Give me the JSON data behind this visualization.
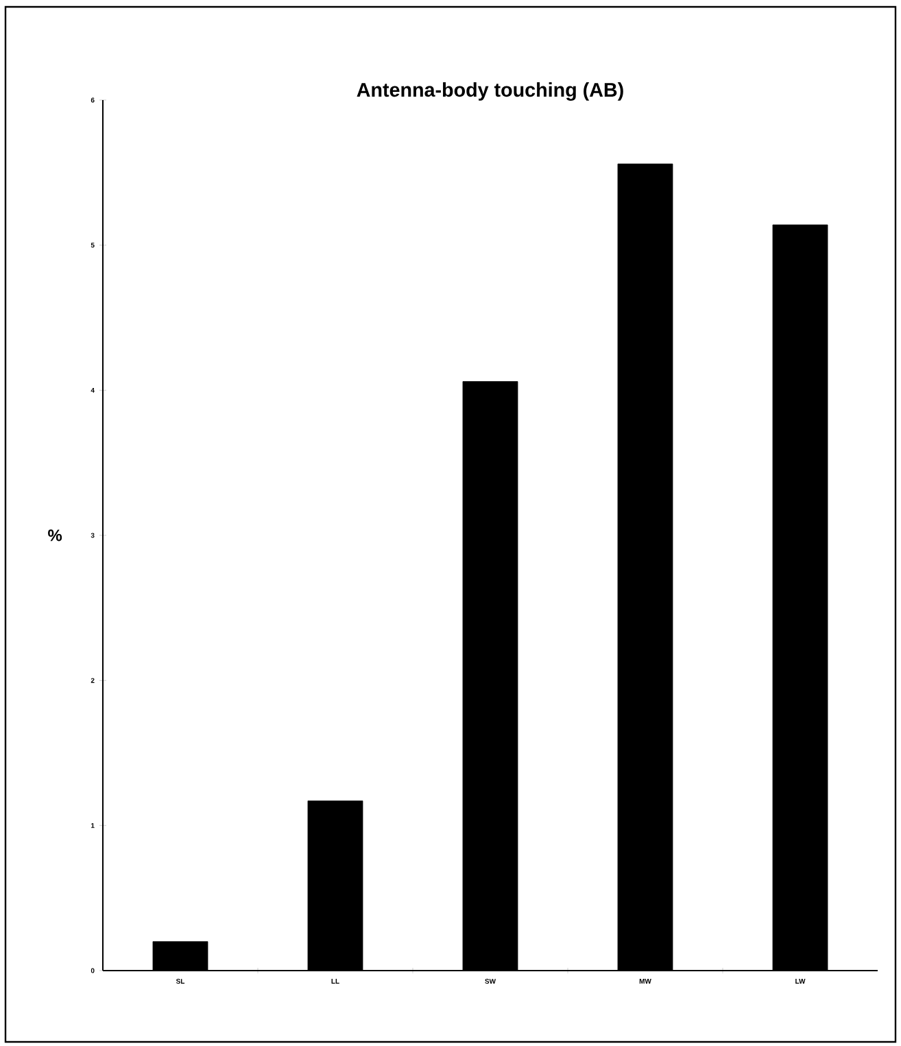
{
  "chart_data": {
    "type": "bar",
    "title": "Antenna-body touching (AB)",
    "ylabel": "%",
    "categories": [
      "SL",
      "LL",
      "SW",
      "MW",
      "LW"
    ],
    "values": [
      0.2,
      1.17,
      4.06,
      5.56,
      5.14
    ],
    "color": "#000000",
    "ylim": [
      0,
      6
    ],
    "yticks": [
      0,
      1,
      2,
      3,
      4,
      5,
      6
    ],
    "grid": false
  }
}
